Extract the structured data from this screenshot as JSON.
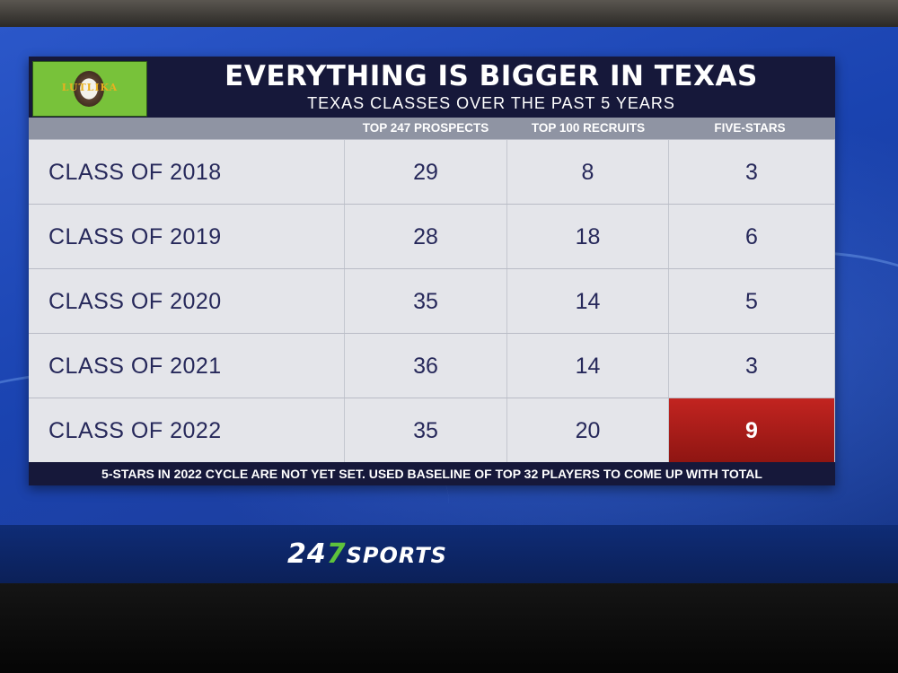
{
  "graphic": {
    "logo_text": "LUTLIKA",
    "title": "EVERYTHING IS BIGGER IN TEXAS",
    "subtitle": "TEXAS CLASSES OVER THE PAST 5 YEARS",
    "columns": [
      "",
      "TOP 247 PROSPECTS",
      "TOP 100 RECRUITS",
      "FIVE-STARS"
    ],
    "rows": [
      {
        "label": "CLASS OF 2018",
        "prospects": "29",
        "top100": "8",
        "five_stars": "3"
      },
      {
        "label": "CLASS OF 2019",
        "prospects": "28",
        "top100": "18",
        "five_stars": "6"
      },
      {
        "label": "CLASS OF 2020",
        "prospects": "35",
        "top100": "14",
        "five_stars": "5"
      },
      {
        "label": "CLASS OF 2021",
        "prospects": "36",
        "top100": "14",
        "five_stars": "3"
      },
      {
        "label": "CLASS OF 2022",
        "prospects": "35",
        "top100": "20",
        "five_stars": "9"
      }
    ],
    "footnote": "5-STARS IN 2022 CYCLE ARE NOT YET SET. USED BASELINE OF TOP 32 PLAYERS TO COME UP WITH TOTAL",
    "highlight_color": "#c22420",
    "header_color": "#16183a"
  },
  "brand": {
    "num_a": "24",
    "num_b": "7",
    "word": "SPORTS",
    "accent": "#5ec23c"
  }
}
